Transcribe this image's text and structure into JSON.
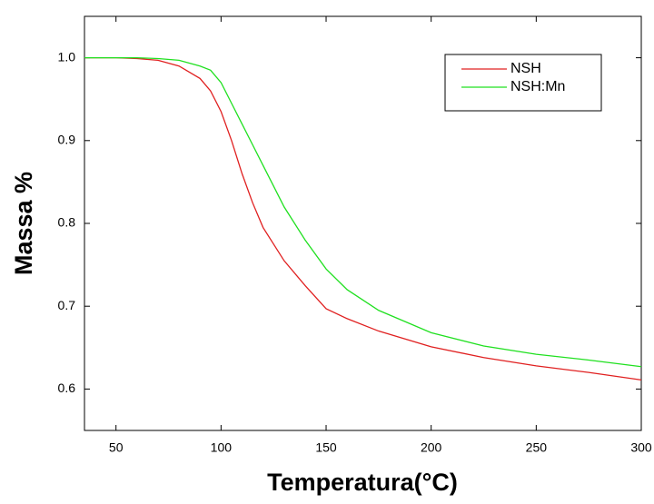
{
  "chart_data": {
    "type": "line",
    "x_label": "Temperatura(°C)",
    "y_label": "Massa %",
    "x": [
      35,
      50,
      60,
      70,
      80,
      90,
      95,
      100,
      105,
      110,
      115,
      120,
      125,
      130,
      140,
      150,
      160,
      175,
      200,
      225,
      250,
      275,
      300
    ],
    "series": [
      {
        "name": "NSH",
        "color": "#e02020",
        "values": [
          1.0,
          1.0,
          0.999,
          0.997,
          0.99,
          0.975,
          0.96,
          0.935,
          0.9,
          0.86,
          0.825,
          0.795,
          0.775,
          0.755,
          0.725,
          0.697,
          0.685,
          0.67,
          0.651,
          0.638,
          0.628,
          0.62,
          0.611
        ]
      },
      {
        "name": "NSH:Mn",
        "color": "#20e020",
        "values": [
          1.0,
          1.0,
          1.0,
          0.999,
          0.997,
          0.99,
          0.985,
          0.97,
          0.945,
          0.92,
          0.895,
          0.87,
          0.845,
          0.82,
          0.78,
          0.745,
          0.72,
          0.695,
          0.668,
          0.652,
          0.642,
          0.635,
          0.627
        ]
      }
    ],
    "xlim": [
      35,
      300
    ],
    "ylim": [
      0.55,
      1.05
    ],
    "xticks": [
      50,
      100,
      150,
      200,
      250,
      300
    ],
    "yticks": [
      0.6,
      0.7,
      0.8,
      0.9,
      {
        "value": 1,
        "label": "1.0"
      }
    ],
    "legend": "upper right"
  }
}
